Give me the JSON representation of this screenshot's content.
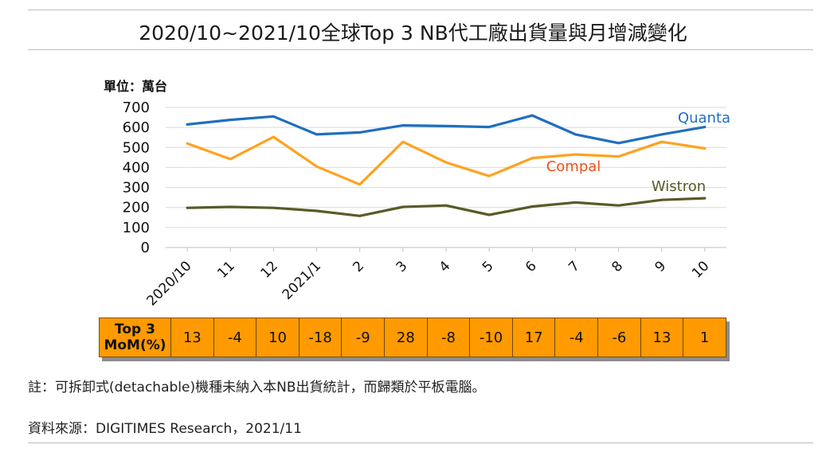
{
  "title": "2020/10~2021/10全球Top 3 NB代工廠出貨量與月增減變化",
  "chart_data": {
    "type": "line",
    "unit_label": "單位：萬台",
    "categories": [
      "2020/10",
      "11",
      "12",
      "2021/1",
      "2",
      "3",
      "4",
      "5",
      "6",
      "7",
      "8",
      "9",
      "10"
    ],
    "ylim": [
      0,
      700
    ],
    "yticks": [
      0,
      100,
      200,
      300,
      400,
      500,
      600,
      700
    ],
    "grid": true,
    "series": [
      {
        "name": "Quanta",
        "color": "#1f6fc0",
        "label_color": "#1f6fc0",
        "values": [
          615,
          638,
          655,
          565,
          575,
          610,
          607,
          602,
          660,
          565,
          522,
          565,
          602
        ]
      },
      {
        "name": "Compal",
        "color": "#ffa21f",
        "label_color": "#e8531c",
        "values": [
          520,
          442,
          553,
          405,
          315,
          528,
          425,
          357,
          447,
          465,
          455,
          528,
          495
        ]
      },
      {
        "name": "Wistron",
        "color": "#5a5a28",
        "label_color": "#5a5a28",
        "values": [
          198,
          203,
          198,
          183,
          158,
          203,
          210,
          163,
          205,
          225,
          210,
          238,
          246
        ]
      }
    ]
  },
  "mom": {
    "label_line1": "Top 3",
    "label_line2": "MoM(%)",
    "values": [
      "13",
      "-4",
      "10",
      "-18",
      "-9",
      "28",
      "-8",
      "-10",
      "17",
      "-4",
      "-6",
      "13",
      "1"
    ]
  },
  "footnote": "註：可拆卸式(detachable)機種未納入本NB出貨統計，而歸類於平板電腦。",
  "source": "資料來源：DIGITIMES Research，2021/11"
}
